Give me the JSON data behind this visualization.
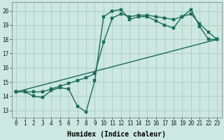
{
  "title": "",
  "xlabel": "Humidex (Indice chaleur)",
  "ylabel": "",
  "bg_color": "#cce8e0",
  "grid_color": "#aaccc4",
  "line_color": "#1a6b5a",
  "xlim": [
    -0.5,
    23.5
  ],
  "ylim": [
    12.5,
    20.6
  ],
  "xticks": [
    0,
    1,
    2,
    3,
    4,
    5,
    6,
    7,
    8,
    9,
    10,
    11,
    12,
    13,
    14,
    15,
    16,
    17,
    18,
    19,
    20,
    21,
    22,
    23
  ],
  "yticks": [
    13,
    14,
    15,
    16,
    17,
    18,
    19,
    20
  ],
  "series1_x": [
    0,
    1,
    2,
    3,
    4,
    5,
    6,
    7,
    8,
    9,
    10,
    11,
    12,
    13,
    14,
    15,
    16,
    17,
    18,
    19,
    20,
    21,
    22,
    23
  ],
  "series1_y": [
    14.3,
    14.3,
    14.0,
    13.9,
    14.4,
    14.6,
    14.5,
    13.3,
    12.9,
    15.1,
    19.6,
    20.0,
    20.1,
    19.4,
    19.6,
    19.6,
    19.3,
    19.0,
    18.8,
    19.6,
    20.1,
    18.9,
    18.0,
    18.0
  ],
  "series2_x": [
    0,
    1,
    2,
    3,
    4,
    5,
    6,
    7,
    8,
    9,
    10,
    11,
    12,
    13,
    14,
    15,
    16,
    17,
    18,
    19,
    20,
    21,
    22,
    23
  ],
  "series2_y": [
    14.3,
    14.3,
    14.3,
    14.3,
    14.5,
    14.7,
    14.9,
    15.1,
    15.3,
    15.6,
    17.8,
    19.5,
    19.8,
    19.6,
    19.7,
    19.7,
    19.6,
    19.5,
    19.4,
    19.6,
    19.8,
    19.1,
    18.5,
    18.0
  ],
  "series3_x": [
    0,
    23
  ],
  "series3_y": [
    14.3,
    18.0
  ],
  "marker_size": 2.5,
  "line_width": 1.0,
  "font_size_label": 7,
  "font_size_tick": 5.5
}
